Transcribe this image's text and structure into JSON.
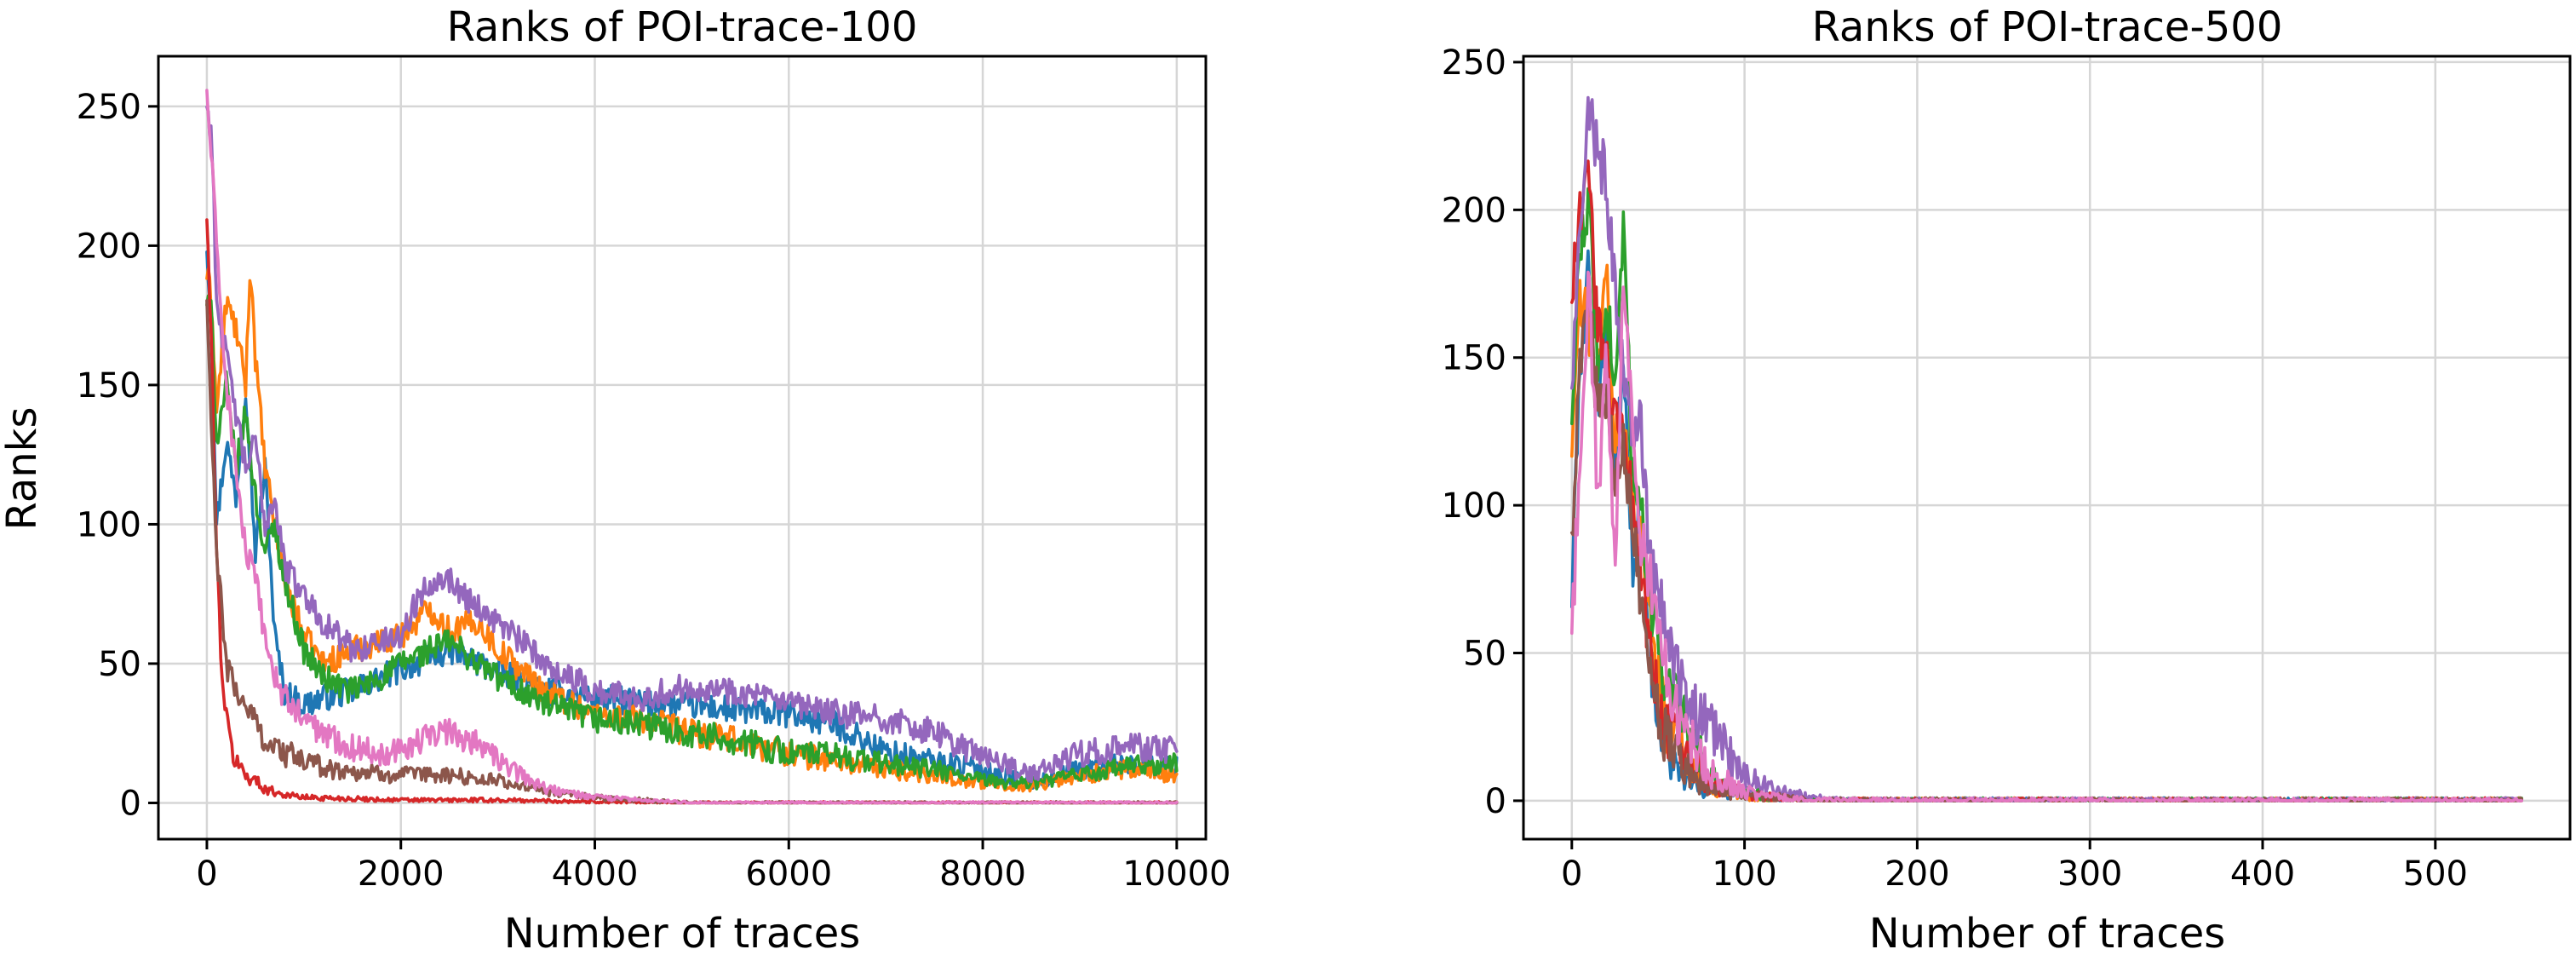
{
  "chart_data": [
    {
      "type": "line",
      "title": "Ranks of POI-trace-100",
      "xlabel": "Number of traces",
      "ylabel": "Ranks",
      "xlim": [
        -500,
        10300
      ],
      "ylim": [
        -13,
        268
      ],
      "xticks": [
        0,
        2000,
        4000,
        6000,
        8000,
        10000
      ],
      "xtick_labels": [
        "0",
        "2000",
        "4000",
        "6000",
        "8000",
        "10000"
      ],
      "yticks": [
        0,
        50,
        100,
        150,
        200,
        250
      ],
      "ytick_labels": [
        "0",
        "50",
        "100",
        "150",
        "200",
        "250"
      ],
      "grid": true,
      "noise_amplitude": 5,
      "series": [
        {
          "color": "#1f77b4",
          "x": [
            0,
            50,
            100,
            200,
            300,
            400,
            500,
            600,
            700,
            800,
            1000,
            1200,
            1500,
            1800,
            2000,
            2300,
            2500,
            2800,
            3000,
            3500,
            4000,
            4500,
            5000,
            5500,
            6000,
            6500,
            7000,
            7500,
            8000,
            8500,
            9000,
            9500,
            10000
          ],
          "y": [
            200,
            170,
            100,
            130,
            110,
            150,
            90,
            120,
            60,
            40,
            35,
            38,
            40,
            45,
            48,
            52,
            55,
            50,
            47,
            40,
            38,
            36,
            35,
            33,
            32,
            28,
            18,
            15,
            12,
            7,
            12,
            14,
            13
          ]
        },
        {
          "color": "#ff7f0e",
          "x": [
            0,
            50,
            100,
            200,
            300,
            400,
            450,
            500,
            600,
            700,
            800,
            1000,
            1200,
            1500,
            1800,
            2000,
            2300,
            2500,
            2800,
            3000,
            3500,
            4000,
            4500,
            5000,
            5500,
            6000,
            6500,
            7000,
            7500,
            8000,
            8500,
            9000,
            9500,
            10000
          ],
          "y": [
            190,
            180,
            140,
            180,
            170,
            150,
            195,
            160,
            120,
            100,
            80,
            60,
            50,
            55,
            58,
            60,
            70,
            62,
            65,
            55,
            40,
            32,
            30,
            25,
            22,
            18,
            15,
            12,
            10,
            7,
            6,
            10,
            12,
            10
          ]
        },
        {
          "color": "#2ca02c",
          "x": [
            0,
            50,
            100,
            200,
            300,
            400,
            500,
            600,
            700,
            800,
            1000,
            1200,
            1500,
            1800,
            2000,
            2300,
            2500,
            2800,
            3000,
            3500,
            4000,
            4500,
            5000,
            5500,
            6000,
            6500,
            7000,
            7500,
            8000,
            8500,
            9000,
            9500,
            10000
          ],
          "y": [
            180,
            175,
            130,
            150,
            120,
            140,
            110,
            90,
            100,
            80,
            55,
            45,
            40,
            45,
            50,
            55,
            58,
            50,
            45,
            35,
            30,
            28,
            25,
            22,
            18,
            17,
            14,
            12,
            8,
            7,
            10,
            13,
            14
          ]
        },
        {
          "color": "#d62728",
          "x": [
            0,
            50,
            100,
            150,
            200,
            250,
            300,
            400,
            500,
            600,
            800,
            1000,
            1500,
            2000,
            3000,
            4000,
            5000,
            6000,
            7000,
            8000,
            9000,
            10000
          ],
          "y": [
            210,
            160,
            90,
            50,
            30,
            20,
            15,
            10,
            8,
            5,
            3,
            2,
            1.5,
            1,
            1,
            0.5,
            0,
            0,
            0,
            0,
            0,
            0
          ]
        },
        {
          "color": "#9467bd",
          "x": [
            0,
            50,
            100,
            200,
            300,
            400,
            500,
            600,
            700,
            800,
            1000,
            1200,
            1500,
            1800,
            2000,
            2200,
            2400,
            2500,
            2800,
            3000,
            3500,
            4000,
            4500,
            5000,
            5500,
            6000,
            6500,
            7000,
            7500,
            8000,
            8500,
            9000,
            9500,
            10000
          ],
          "y": [
            250,
            240,
            180,
            160,
            140,
            120,
            130,
            100,
            110,
            85,
            75,
            65,
            55,
            58,
            60,
            75,
            82,
            80,
            70,
            65,
            50,
            40,
            38,
            42,
            40,
            35,
            32,
            30,
            25,
            17,
            10,
            18,
            20,
            19
          ]
        },
        {
          "color": "#8c564b",
          "x": [
            0,
            50,
            100,
            150,
            200,
            300,
            400,
            500,
            600,
            800,
            1000,
            1300,
            1600,
            2000,
            2500,
            3000,
            3500,
            4000,
            4500,
            5000,
            6000,
            8000,
            10000
          ],
          "y": [
            180,
            130,
            90,
            70,
            50,
            40,
            35,
            30,
            22,
            18,
            15,
            12,
            11,
            10,
            10,
            8,
            4,
            2,
            1,
            0,
            0,
            0,
            0
          ]
        },
        {
          "color": "#e377c2",
          "x": [
            0,
            50,
            100,
            200,
            300,
            400,
            500,
            600,
            700,
            800,
            1000,
            1200,
            1500,
            1800,
            2000,
            2200,
            2400,
            2600,
            2800,
            3000,
            3500,
            4000,
            4500,
            5000,
            6000,
            7000,
            8000,
            9000,
            10000
          ],
          "y": [
            255,
            230,
            200,
            150,
            120,
            90,
            80,
            60,
            45,
            38,
            30,
            25,
            20,
            18,
            20,
            22,
            26,
            24,
            22,
            15,
            5,
            2,
            1,
            0,
            0,
            0,
            0,
            0,
            0
          ]
        }
      ]
    },
    {
      "type": "line",
      "title": "Ranks of POI-trace-500",
      "xlabel": "Number of traces",
      "ylabel": "",
      "xlim": [
        -28,
        578
      ],
      "ylim": [
        -13,
        252
      ],
      "xticks": [
        0,
        100,
        200,
        300,
        400,
        500
      ],
      "xtick_labels": [
        "0",
        "100",
        "200",
        "300",
        "400",
        "500"
      ],
      "yticks": [
        0,
        50,
        100,
        150,
        200,
        250
      ],
      "ytick_labels": [
        "0",
        "50",
        "100",
        "150",
        "200",
        "250"
      ],
      "grid": true,
      "noise_amplitude": 10,
      "series": [
        {
          "color": "#1f77b4",
          "x": [
            0,
            5,
            10,
            15,
            20,
            25,
            30,
            35,
            40,
            45,
            50,
            55,
            60,
            70,
            80,
            100,
            120,
            140,
            160,
            550
          ],
          "y": [
            70,
            150,
            180,
            130,
            160,
            110,
            150,
            80,
            100,
            50,
            30,
            15,
            10,
            5,
            3,
            2,
            1,
            0,
            0,
            0
          ]
        },
        {
          "color": "#ff7f0e",
          "x": [
            0,
            5,
            10,
            15,
            20,
            25,
            30,
            35,
            40,
            45,
            50,
            55,
            60,
            70,
            80,
            100,
            120,
            140,
            160,
            550
          ],
          "y": [
            120,
            170,
            160,
            140,
            180,
            120,
            130,
            100,
            90,
            60,
            40,
            25,
            20,
            10,
            5,
            2,
            1,
            0,
            0,
            0
          ]
        },
        {
          "color": "#2ca02c",
          "x": [
            0,
            5,
            10,
            15,
            20,
            25,
            30,
            35,
            40,
            45,
            50,
            55,
            60,
            70,
            80,
            100,
            120,
            140,
            160,
            550
          ],
          "y": [
            130,
            190,
            200,
            150,
            170,
            140,
            195,
            110,
            100,
            70,
            50,
            40,
            35,
            20,
            8,
            3,
            1,
            0,
            0,
            0
          ]
        },
        {
          "color": "#d62728",
          "x": [
            0,
            5,
            10,
            15,
            20,
            25,
            30,
            35,
            40,
            45,
            50,
            55,
            60,
            70,
            80,
            100,
            120,
            140,
            160,
            550
          ],
          "y": [
            170,
            200,
            210,
            160,
            150,
            130,
            120,
            100,
            80,
            50,
            35,
            25,
            20,
            12,
            6,
            2,
            1,
            0,
            0,
            0
          ]
        },
        {
          "color": "#9467bd",
          "x": [
            0,
            5,
            10,
            15,
            20,
            25,
            30,
            35,
            40,
            45,
            50,
            55,
            60,
            70,
            80,
            90,
            100,
            120,
            140,
            160,
            550
          ],
          "y": [
            140,
            200,
            235,
            220,
            210,
            170,
            150,
            120,
            130,
            80,
            70,
            60,
            45,
            30,
            25,
            15,
            8,
            3,
            1,
            0,
            0
          ]
        },
        {
          "color": "#8c564b",
          "x": [
            0,
            5,
            10,
            15,
            20,
            25,
            30,
            35,
            40,
            45,
            50,
            55,
            60,
            70,
            80,
            100,
            120,
            140,
            160,
            550
          ],
          "y": [
            90,
            150,
            170,
            130,
            140,
            110,
            120,
            90,
            70,
            40,
            30,
            20,
            15,
            8,
            4,
            2,
            1,
            0,
            0,
            0
          ]
        },
        {
          "color": "#e377c2",
          "x": [
            0,
            5,
            10,
            15,
            20,
            25,
            30,
            35,
            40,
            45,
            50,
            55,
            60,
            70,
            80,
            100,
            120,
            140,
            160,
            550
          ],
          "y": [
            55,
            120,
            180,
            100,
            150,
            80,
            175,
            130,
            90,
            75,
            60,
            45,
            30,
            18,
            10,
            3,
            1,
            0,
            0,
            0
          ]
        }
      ]
    }
  ]
}
